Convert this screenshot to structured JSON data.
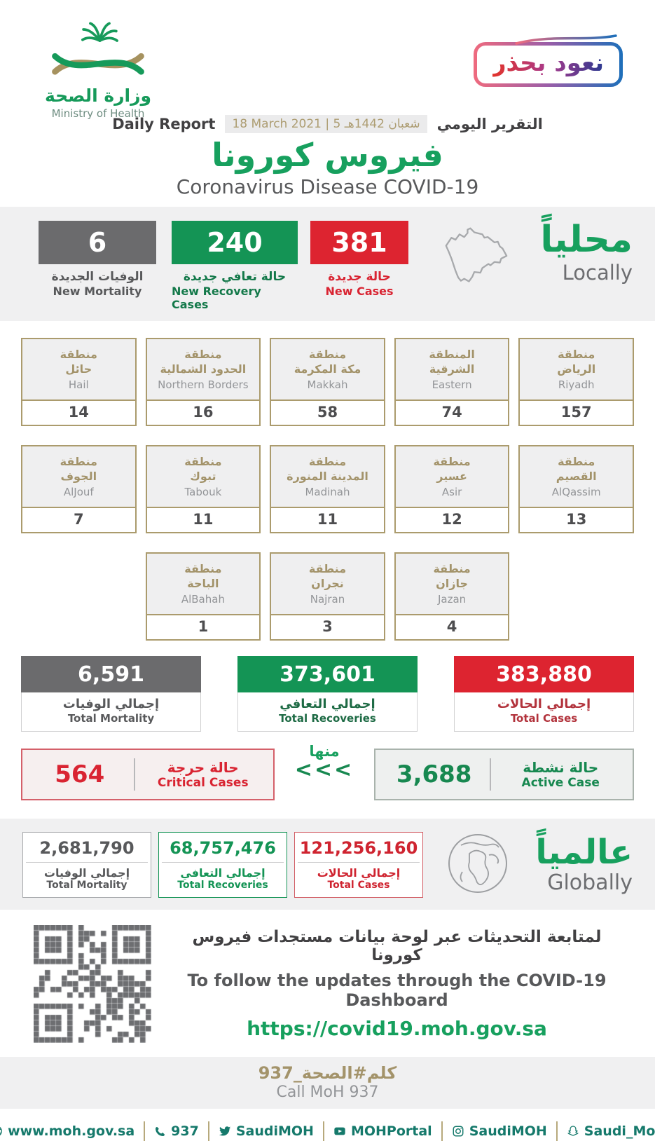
{
  "colors": {
    "green": "#149455",
    "bright_green": "#17A05E",
    "red": "#DD2430",
    "gray": "#6B6B6D",
    "tan": "#A89968",
    "teal": "#15796B"
  },
  "header": {
    "logo_ar": "وزارة الصحة",
    "logo_en": "Ministry of Health",
    "badge": "نعود بحذر",
    "report_en": "Daily Report",
    "date": "18 March 2021 | 5 شعبان 1442هـ",
    "report_ar": "التقرير اليومي",
    "title_ar": "فيروس كورونا",
    "title_en": "Coronavirus Disease COVID-19"
  },
  "locally": {
    "heading_ar": "محلياً",
    "heading_en": "Locally",
    "stats": [
      {
        "value": "6",
        "label_ar": "الوفيات الجديدة",
        "label_en": "New Mortality"
      },
      {
        "value": "240",
        "label_ar": "حالة تعافي جديدة",
        "label_en": "New Recovery Cases"
      },
      {
        "value": "381",
        "label_ar": "حالة جديدة",
        "label_en": "New Cases"
      }
    ]
  },
  "regions": {
    "cards": [
      {
        "ar1": "منطقة",
        "ar2": "حائل",
        "en": "Hail",
        "value": "14"
      },
      {
        "ar1": "منطقة",
        "ar2": "الحدود الشمالية",
        "en": "Northern Borders",
        "value": "16"
      },
      {
        "ar1": "منطقة",
        "ar2": "مكة المكرمة",
        "en": "Makkah",
        "value": "58"
      },
      {
        "ar1": "المنطقة",
        "ar2": "الشرقية",
        "en": "Eastern",
        "value": "74"
      },
      {
        "ar1": "منطقة",
        "ar2": "الرياض",
        "en": "Riyadh",
        "value": "157"
      },
      {
        "ar1": "منطقة",
        "ar2": "الجوف",
        "en": "AlJouf",
        "value": "7"
      },
      {
        "ar1": "منطقة",
        "ar2": "تبوك",
        "en": "Tabouk",
        "value": "11"
      },
      {
        "ar1": "منطقة",
        "ar2": "المدينة المنورة",
        "en": "Madinah",
        "value": "11"
      },
      {
        "ar1": "منطقة",
        "ar2": "عسير",
        "en": "Asir",
        "value": "12"
      },
      {
        "ar1": "منطقة",
        "ar2": "القصيم",
        "en": "AlQassim",
        "value": "13"
      },
      {
        "ar1": "منطقة",
        "ar2": "الباحة",
        "en": "AlBahah",
        "value": "1"
      },
      {
        "ar1": "منطقة",
        "ar2": "نجران",
        "en": "Najran",
        "value": "3"
      },
      {
        "ar1": "منطقة",
        "ar2": "جازان",
        "en": "Jazan",
        "value": "4"
      }
    ]
  },
  "totals": [
    {
      "value": "6,591",
      "label_ar": "إجمالي الوفيات",
      "label_en": "Total Mortality"
    },
    {
      "value": "373,601",
      "label_ar": "إجمالي التعافي",
      "label_en": "Total Recoveries"
    },
    {
      "value": "383,880",
      "label_ar": "إجمالي الحالات",
      "label_en": "Total Cases"
    }
  ],
  "critical": {
    "value": "564",
    "label_ar": "حالة حرجة",
    "label_en": "Critical Cases"
  },
  "minha": {
    "label_ar": "منها",
    "arrows": "<<<"
  },
  "active": {
    "value": "3,688",
    "label_ar": "حالة نشطة",
    "label_en": "Active Case"
  },
  "globally": {
    "heading_ar": "عالمياً",
    "heading_en": "Globally",
    "stats": [
      {
        "value": "2,681,790",
        "label_ar": "إجمالي الوفيات",
        "label_en": "Total Mortality"
      },
      {
        "value": "68,757,476",
        "label_ar": "إجمالي التعافي",
        "label_en": "Total Recoveries"
      },
      {
        "value": "121,256,160",
        "label_ar": "إجمالي الحالات",
        "label_en": "Total Cases"
      }
    ]
  },
  "dashboard": {
    "line_ar": "لمتابعة التحديثات عبر لوحة بيانات مستجدات فيروس كورونا",
    "line_en": "To follow the updates through the COVID-19 Dashboard",
    "url": "https://covid19.moh.gov.sa"
  },
  "call": {
    "ar": "كلم#الصحة_937",
    "en": "Call MoH 937"
  },
  "footer": {
    "items": [
      {
        "icon": "globe-icon",
        "label": "www.moh.gov.sa"
      },
      {
        "icon": "phone-icon",
        "label": "937"
      },
      {
        "icon": "twitter-icon",
        "label": "SaudiMOH"
      },
      {
        "icon": "youtube-icon",
        "label": "MOHPortal"
      },
      {
        "icon": "instagram-icon",
        "label": "SaudiMOH"
      },
      {
        "icon": "snapchat-icon",
        "label": "Saudi_Moh"
      }
    ]
  }
}
